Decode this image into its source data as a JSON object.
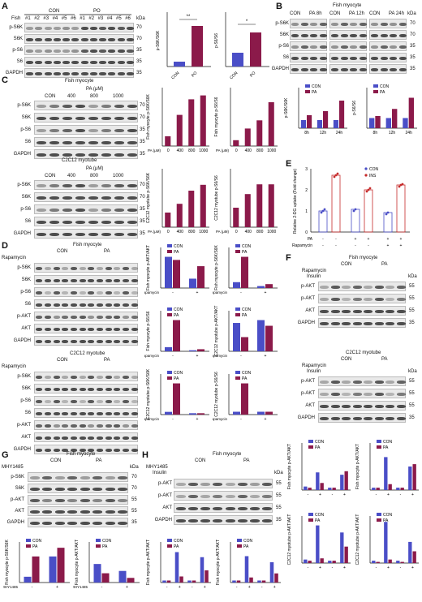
{
  "colors": {
    "con": "#4a4ec7",
    "pa": "#8b1a4a",
    "ins": "#c62b2b"
  },
  "panel_a": {
    "label": "A",
    "fish_label": "Fish",
    "groups": [
      "CON",
      "PO"
    ],
    "lanes": [
      "#1",
      "#2",
      "#3",
      "#4",
      "#5",
      "#6",
      "#1",
      "#2",
      "#3",
      "#4",
      "#5",
      "#6"
    ],
    "blots": [
      "p-S6K",
      "S6K",
      "p-S6",
      "S6",
      "GAPDH"
    ],
    "kda_label": "kDa",
    "kda": [
      "70",
      "70",
      "35",
      "35",
      "35"
    ],
    "chart1": {
      "ylabel": "p-S6K/S6K",
      "categories": [
        "CON",
        "PO"
      ],
      "sig": "**"
    },
    "chart2": {
      "ylabel": "p-S6/S6",
      "categories": [
        "CON",
        "PO"
      ],
      "sig": "*"
    }
  },
  "panel_b": {
    "label": "B",
    "title": "Fish myocyte",
    "groups": [
      "CON",
      "PA 8h",
      "CON",
      "PA 12h",
      "CON",
      "PA 24h"
    ],
    "blots": [
      "p-S6K",
      "S6K",
      "p-S6",
      "S6",
      "GAPDH"
    ],
    "kda_label": "kDa",
    "kda": [
      "70",
      "70",
      "35",
      "35",
      "35"
    ],
    "legend": [
      "CON",
      "PA"
    ],
    "chart1": {
      "ylabel": "p-S6K/S6K",
      "categories": [
        "8h",
        "12h",
        "24h"
      ]
    },
    "chart2": {
      "ylabel": "p-S6/S6",
      "categories": [
        "8h",
        "12h",
        "24h"
      ]
    }
  },
  "panel_c": {
    "label": "C",
    "title_fish": "Fish myocyte",
    "title_c2c12": "C2C12 myotube",
    "pa_label": "PA (μM)",
    "doses": [
      "CON",
      "400",
      "800",
      "1000"
    ],
    "blots": [
      "p-S6K",
      "S6K",
      "p-S6",
      "S6",
      "GAPDH"
    ],
    "kda": [
      "70",
      "70",
      "35",
      "35",
      "35"
    ],
    "x_prefix": "PA (μM)",
    "x_cats": [
      "0",
      "400",
      "800",
      "1000"
    ],
    "fish_chart1": {
      "ylabel": "Fish myocyte p-S6K/S6K"
    },
    "fish_chart2": {
      "ylabel": "Fish myocyte p-S6/S6"
    },
    "c2c_chart1": {
      "ylabel": "C2C12 myotube p-S6K/S6K"
    },
    "c2c_chart2": {
      "ylabel": "C2C12 myotube p-S6/S6"
    }
  },
  "panel_d": {
    "label": "D",
    "title_fish": "Fish myocyte",
    "title_c2c12": "C2C12 myotube",
    "groups": [
      "CON",
      "PA"
    ],
    "row_label": "Rapamycin",
    "blots": [
      "p-S6K",
      "S6K",
      "p-S6",
      "S6",
      "p-AKT",
      "AKT",
      "GAPDH"
    ],
    "legend": [
      "CON",
      "PA"
    ],
    "charts": [
      {
        "ylabel": "Fish myocyte p-AKT/AKT"
      },
      {
        "ylabel": "Fish myocyte p-S6K/S6K"
      },
      {
        "ylabel": "Fish myocyte p-S6/S6"
      },
      {
        "ylabel": "C2C12 myotube p-AKT/AKT"
      },
      {
        "ylabel": "C2C12 myotube p-S6K/S6K"
      },
      {
        "ylabel": "C2C12 myotube p-S6/S6"
      }
    ]
  },
  "panel_e": {
    "label": "E",
    "ylabel": "Relative 2-DG uptake (Fold change)",
    "legend": [
      "CON",
      "INS"
    ],
    "row1": "PA",
    "row2": "Rapamycin",
    "yticks": [
      "0",
      "1",
      "2",
      "3"
    ]
  },
  "panel_f": {
    "label": "F",
    "title_fish": "Fish myocyte",
    "title_c2c12": "C2C12 myotube",
    "groups": [
      "CON",
      "PA"
    ],
    "row1": "Rapamycin",
    "row2": "Insulin",
    "kda_label": "kDa",
    "blots": [
      "p-AKT",
      "p-AKT",
      "AKT",
      "GAPDH"
    ],
    "kda": [
      "55",
      "55",
      "55",
      "35"
    ]
  },
  "panel_g": {
    "label": "G",
    "title": "Fish myocyte",
    "groups": [
      "CON",
      "PA"
    ],
    "row_label": "MHY1485",
    "kda_label": "kDa",
    "blots": [
      "p-S6K",
      "S6K",
      "p-AKT",
      "AKT",
      "GAPDH"
    ],
    "kda": [
      "70",
      "70",
      "55",
      "55",
      "35"
    ],
    "legend": [
      "CON",
      "PA"
    ],
    "chart1": {
      "ylabel": "Fish myocyte p-S6K/S6K"
    },
    "chart2": {
      "ylabel": "Fish myocyte p-AKT/AKT"
    }
  },
  "panel_h": {
    "label": "H",
    "title": "Fish myocyte",
    "groups": [
      "CON",
      "PA"
    ],
    "row1": "MHY1485",
    "row2": "Insulin",
    "kda_label": "kDa",
    "blots": [
      "p-AKT",
      "p-AKT",
      "AKT",
      "GAPDH"
    ],
    "kda": [
      "55",
      "55",
      "55",
      "35"
    ],
    "legend": [
      "CON",
      "PA"
    ],
    "chart1": {
      "ylabel": "Fish myocyte p-AKT/AKT"
    },
    "chart2": {
      "ylabel": "Fish myocyte p-AKT/AKT"
    }
  },
  "panel_right": {
    "legend": [
      "CON",
      "PA"
    ],
    "rows": [
      "Insulin",
      "Rapamycin"
    ],
    "charts": [
      {
        "ylabel": "Fish myocyte p-AKT/AKT"
      },
      {
        "ylabel": "Fish myocyte p-AKT/AKT"
      },
      {
        "ylabel": "C2C12 myotube p-AKT/AKT"
      },
      {
        "ylabel": "C2C12 myotube p-AKT/AKT"
      }
    ]
  },
  "chart_data": [
    {
      "type": "bar",
      "panel": "A1",
      "categories": [
        "CON",
        "PO"
      ],
      "values": [
        1.0,
        8.5
      ],
      "ylim": [
        0,
        12
      ]
    },
    {
      "type": "bar",
      "panel": "A2",
      "categories": [
        "CON",
        "PO"
      ],
      "values": [
        1.0,
        2.4
      ],
      "ylim": [
        0,
        4
      ]
    },
    {
      "type": "bar",
      "panel": "B1",
      "categories": [
        "8h",
        "12h",
        "24h"
      ],
      "series": [
        {
          "name": "CON",
          "values": [
            1,
            1,
            1
          ]
        },
        {
          "name": "PA",
          "values": [
            1.6,
            2.1,
            3.4
          ]
        }
      ],
      "ylim": [
        0,
        5
      ]
    },
    {
      "type": "bar",
      "panel": "B2",
      "categories": [
        "8h",
        "12h",
        "24h"
      ],
      "series": [
        {
          "name": "CON",
          "values": [
            1,
            1,
            1
          ]
        },
        {
          "name": "PA",
          "values": [
            1.2,
            1.9,
            3.0
          ]
        }
      ],
      "ylim": [
        0,
        4
      ]
    },
    {
      "type": "bar",
      "panel": "C fish 1",
      "categories": [
        "0",
        "400",
        "800",
        "1000"
      ],
      "values": [
        1,
        3.2,
        4.8,
        5.2
      ],
      "ylim": [
        0,
        6
      ]
    },
    {
      "type": "bar",
      "panel": "C fish 2",
      "categories": [
        "0",
        "400",
        "800",
        "1000"
      ],
      "values": [
        1,
        3.0,
        4.4,
        7.5
      ],
      "ylim": [
        0,
        10
      ]
    },
    {
      "type": "bar",
      "panel": "C c2c12 1",
      "categories": [
        "0",
        "400",
        "800",
        "1000"
      ],
      "values": [
        1,
        1.6,
        2.5,
        2.9
      ],
      "ylim": [
        0,
        4
      ]
    },
    {
      "type": "bar",
      "panel": "C c2c12 2",
      "categories": [
        "0",
        "400",
        "800",
        "1000"
      ],
      "values": [
        1,
        1.7,
        2.2,
        2.2
      ],
      "ylim": [
        0,
        3
      ]
    }
  ]
}
